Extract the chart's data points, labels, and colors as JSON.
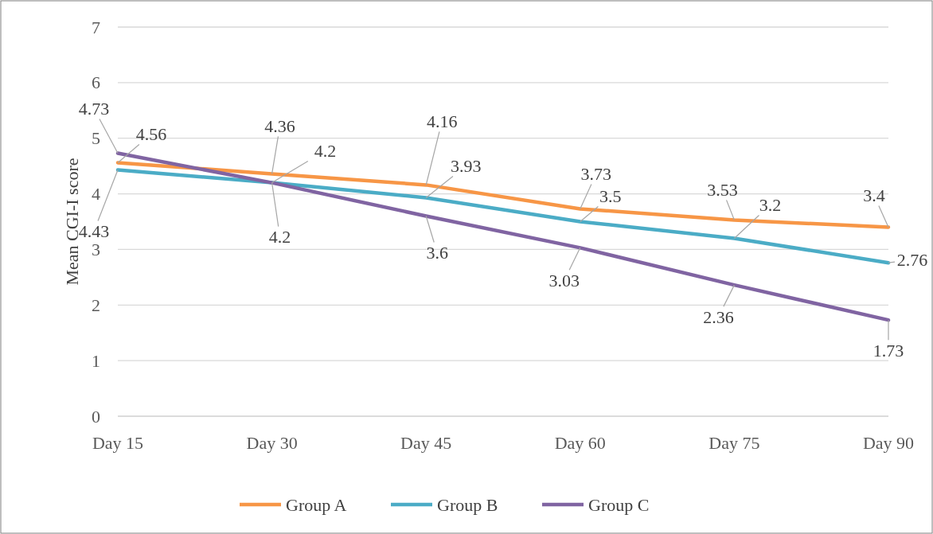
{
  "chart_data": {
    "type": "line",
    "ylabel": "Mean CGI-I score",
    "categories": [
      "Day 15",
      "Day 30",
      "Day 45",
      "Day 60",
      "Day 75",
      "Day 90"
    ],
    "series": [
      {
        "name": "Group A",
        "color": "#f79646",
        "values": [
          4.56,
          4.36,
          4.16,
          3.73,
          3.53,
          3.4
        ]
      },
      {
        "name": "Group B",
        "color": "#4bacc6",
        "values": [
          4.43,
          4.2,
          3.93,
          3.5,
          3.2,
          2.76
        ]
      },
      {
        "name": "Group C",
        "color": "#8064a2",
        "values": [
          4.73,
          4.2,
          3.6,
          3.03,
          2.36,
          1.73
        ]
      }
    ],
    "ylim": [
      0,
      7
    ],
    "yticks": [
      0,
      1,
      2,
      3,
      4,
      5,
      6,
      7
    ],
    "grid": "y",
    "legend": "bottom",
    "data_labels": true,
    "marker": "none",
    "line_style": "solid"
  }
}
